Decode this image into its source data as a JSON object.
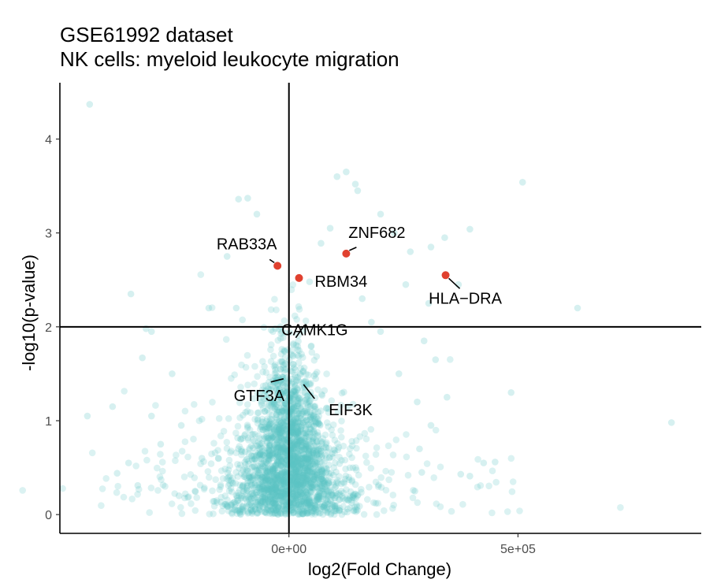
{
  "chart_data": {
    "type": "scatter",
    "title": "GSE61992 dataset",
    "subtitle": "NK cells: myeloid leukocyte migration",
    "xlabel": "log2(Fold Change)",
    "ylabel": "-log10(p-value)",
    "xlim": [
      -500000,
      900000
    ],
    "ylim": [
      -0.2,
      4.6
    ],
    "x_ticks": [
      {
        "value": 0,
        "label": "0e+00"
      },
      {
        "value": 500000,
        "label": "5e+05"
      }
    ],
    "y_ticks": [
      {
        "value": 0,
        "label": "0"
      },
      {
        "value": 1,
        "label": "1"
      },
      {
        "value": 2,
        "label": "2"
      },
      {
        "value": 3,
        "label": "3"
      },
      {
        "value": 4,
        "label": "4"
      }
    ],
    "vline_x": 0,
    "hline_y": 2,
    "grid": false,
    "colors": {
      "background_points": "#5bc5c5",
      "highlight_points": "#e0412f",
      "axis": "#000000"
    },
    "highlighted_genes": [
      {
        "label": "RAB33A",
        "x": -25000,
        "y": 2.65
      },
      {
        "label": "ZNF682",
        "x": 125000,
        "y": 2.78
      },
      {
        "label": "RBM34",
        "x": 22000,
        "y": 2.52
      },
      {
        "label": "HLA−DRA",
        "x": 342000,
        "y": 2.55
      },
      {
        "label": "CAMK1G",
        "x": 8000,
        "y": 1.85
      },
      {
        "label": "GTF3A",
        "x": -5000,
        "y": 1.48
      },
      {
        "label": "EIF3K",
        "x": 25000,
        "y": 1.42
      }
    ],
    "outlier_points": [
      {
        "x": -435000,
        "y": 4.37
      },
      {
        "x": -110000,
        "y": 3.36
      },
      {
        "x": -90000,
        "y": 3.37
      },
      {
        "x": -70000,
        "y": 3.2
      },
      {
        "x": 45000,
        "y": 2.48
      },
      {
        "x": 90000,
        "y": 3.05
      },
      {
        "x": 70000,
        "y": 2.89
      },
      {
        "x": 125000,
        "y": 3.65
      },
      {
        "x": 105000,
        "y": 3.6
      },
      {
        "x": 145000,
        "y": 3.52
      },
      {
        "x": 150000,
        "y": 3.45
      },
      {
        "x": 200000,
        "y": 3.2
      },
      {
        "x": 230000,
        "y": 3.0
      },
      {
        "x": 265000,
        "y": 2.8
      },
      {
        "x": 340000,
        "y": 2.95
      },
      {
        "x": 395000,
        "y": 3.04
      },
      {
        "x": 510000,
        "y": 3.54
      },
      {
        "x": 630000,
        "y": 2.2
      },
      {
        "x": 835000,
        "y": 0.98
      },
      {
        "x": 485000,
        "y": 1.3
      },
      {
        "x": 425000,
        "y": 0.55
      },
      {
        "x": 450000,
        "y": 0.56
      },
      {
        "x": 375000,
        "y": 0.43
      },
      {
        "x": 395000,
        "y": 0.41
      },
      {
        "x": -255000,
        "y": 1.5
      },
      {
        "x": -235000,
        "y": 0.95
      },
      {
        "x": -300000,
        "y": 1.95
      },
      {
        "x": -312000,
        "y": 1.98
      },
      {
        "x": -320000,
        "y": 1.67
      },
      {
        "x": -345000,
        "y": 2.35
      },
      {
        "x": -440000,
        "y": 1.05
      },
      {
        "x": -385000,
        "y": 1.15
      },
      {
        "x": -350000,
        "y": 0.55
      },
      {
        "x": -375000,
        "y": 0.44
      },
      {
        "x": -330000,
        "y": 0.31
      },
      {
        "x": -240000,
        "y": 0.2
      },
      {
        "x": -175000,
        "y": 2.2
      },
      {
        "x": -135000,
        "y": 2.75
      },
      {
        "x": -115000,
        "y": 2.2
      },
      {
        "x": 310000,
        "y": 2.85
      },
      {
        "x": 305000,
        "y": 2.25
      },
      {
        "x": 370000,
        "y": 2.45
      },
      {
        "x": 345000,
        "y": 1.25
      },
      {
        "x": 295000,
        "y": 1.85
      },
      {
        "x": 320000,
        "y": 1.65
      },
      {
        "x": 255000,
        "y": 2.45
      },
      {
        "x": 240000,
        "y": 1.5
      },
      {
        "x": 280000,
        "y": 1.2
      },
      {
        "x": 310000,
        "y": 0.95
      },
      {
        "x": 285000,
        "y": 0.7
      },
      {
        "x": 290000,
        "y": 0.45
      },
      {
        "x": 275000,
        "y": 0.25
      },
      {
        "x": 180000,
        "y": 2.05
      },
      {
        "x": 160000,
        "y": 2.3
      },
      {
        "x": 200000,
        "y": 1.95
      },
      {
        "x": -280000,
        "y": 0.75
      },
      {
        "x": -300000,
        "y": 1.05
      },
      {
        "x": -190000,
        "y": 0.6
      },
      {
        "x": -205000,
        "y": 0.25
      }
    ]
  }
}
